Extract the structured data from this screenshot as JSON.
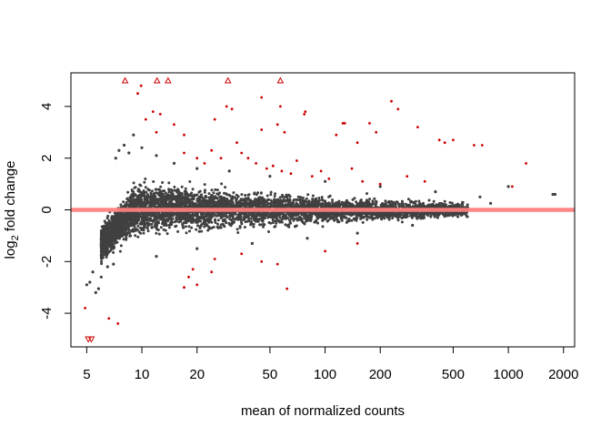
{
  "chart_data": {
    "type": "scatter",
    "title": "",
    "xlabel": "mean of normalized counts",
    "ylabel": "log2 fold change",
    "ylabel_parts": {
      "base": "log",
      "sub": "2",
      "rest": " fold change"
    },
    "x_scale": "log",
    "xlim": [
      4.1,
      2300
    ],
    "ylim": [
      -5.3,
      5.3
    ],
    "x_ticks": [
      5,
      10,
      20,
      50,
      100,
      200,
      500,
      1000,
      2000
    ],
    "x_tick_labels": [
      "5",
      "10",
      "20",
      "50",
      "100",
      "200",
      "500",
      "1000",
      "2000"
    ],
    "y_ticks": [
      -4,
      -2,
      0,
      2,
      4
    ],
    "y_tick_labels": [
      "-4",
      "-2",
      "0",
      "2",
      "4"
    ],
    "grid": false,
    "reference_line": {
      "y": 0,
      "color": "#ff7f7f"
    },
    "colors": {
      "non_significant": "#404040",
      "significant": "#cc0000",
      "reference_line": "#ff7f7f"
    },
    "series": [
      {
        "name": "",
        "color": "#404040",
        "points": [
          [
            5,
            -2.9
          ],
          [
            5.2,
            -2.8
          ],
          [
            5.6,
            -3.2
          ],
          [
            5.8,
            -3.05
          ],
          [
            5.4,
            -2.4
          ],
          [
            6.0,
            -2.6
          ],
          [
            6.5,
            -2.2
          ],
          [
            7.0,
            -2.1
          ],
          [
            7.2,
            2.0
          ],
          [
            7.5,
            2.3
          ],
          [
            8.0,
            2.5
          ],
          [
            8.5,
            2.2
          ],
          [
            9,
            2.9
          ],
          [
            10,
            2.4
          ],
          [
            12,
            2.1
          ],
          [
            15,
            1.8
          ],
          [
            20,
            1.6
          ],
          [
            30,
            1.5
          ],
          [
            50,
            1.3
          ],
          [
            100,
            1.1
          ],
          [
            200,
            0.9
          ],
          [
            400,
            0.7
          ],
          [
            700,
            0.5
          ],
          [
            1000,
            0.9
          ],
          [
            1750,
            0.6
          ],
          [
            1800,
            0.6
          ],
          [
            600,
            0.1
          ],
          [
            800,
            0.25
          ],
          [
            12,
            -1.8
          ],
          [
            20,
            -1.5
          ],
          [
            40,
            -1.3
          ],
          [
            80,
            -1.1
          ],
          [
            150,
            -0.9
          ],
          [
            300,
            -0.6
          ],
          [
            480,
            -0.2
          ]
        ]
      },
      {
        "name": "",
        "color": "#cc0000",
        "points": [
          [
            4.9,
            -3.8
          ],
          [
            6.6,
            -4.2
          ],
          [
            7.4,
            -4.4
          ],
          [
            9.5,
            4.5
          ],
          [
            9.9,
            4.8
          ],
          [
            11.5,
            3.8
          ],
          [
            12.6,
            3.7
          ],
          [
            10.5,
            3.5
          ],
          [
            12,
            3.0
          ],
          [
            15,
            3.3
          ],
          [
            17,
            2.9
          ],
          [
            25,
            3.5
          ],
          [
            29,
            4.0
          ],
          [
            31,
            3.9
          ],
          [
            45,
            4.35
          ],
          [
            45,
            3.1
          ],
          [
            55,
            3.3
          ],
          [
            57,
            4.0
          ],
          [
            60,
            3.0
          ],
          [
            77,
            3.7
          ],
          [
            78,
            3.8
          ],
          [
            115,
            2.9
          ],
          [
            125,
            3.35
          ],
          [
            128,
            3.35
          ],
          [
            150,
            2.6
          ],
          [
            175,
            3.35
          ],
          [
            190,
            3.0
          ],
          [
            230,
            4.2
          ],
          [
            250,
            3.9
          ],
          [
            320,
            3.2
          ],
          [
            420,
            2.7
          ],
          [
            450,
            2.6
          ],
          [
            500,
            2.7
          ],
          [
            650,
            2.5
          ],
          [
            720,
            2.5
          ],
          [
            1250,
            1.8
          ],
          [
            1050,
            0.9
          ],
          [
            17,
            2.2
          ],
          [
            20,
            2.0
          ],
          [
            22,
            1.8
          ],
          [
            24,
            2.3
          ],
          [
            27,
            2.0
          ],
          [
            33,
            2.6
          ],
          [
            35,
            2.2
          ],
          [
            38,
            2.0
          ],
          [
            42,
            1.8
          ],
          [
            48,
            1.6
          ],
          [
            52,
            1.7
          ],
          [
            58,
            1.5
          ],
          [
            65,
            1.4
          ],
          [
            70,
            1.9
          ],
          [
            85,
            1.3
          ],
          [
            95,
            1.5
          ],
          [
            105,
            1.2
          ],
          [
            140,
            1.6
          ],
          [
            160,
            1.1
          ],
          [
            200,
            1.0
          ],
          [
            280,
            1.3
          ],
          [
            350,
            1.1
          ],
          [
            18,
            -2.6
          ],
          [
            19,
            -2.3
          ],
          [
            20,
            -2.9
          ],
          [
            17,
            -3.0
          ],
          [
            24,
            -2.4
          ],
          [
            45,
            -2.0
          ],
          [
            55,
            -2.1
          ],
          [
            62,
            -3.05
          ],
          [
            100,
            -1.6
          ],
          [
            150,
            -1.3
          ],
          [
            25,
            -1.9
          ],
          [
            35,
            -1.7
          ]
        ]
      },
      {
        "name": "",
        "marker": "triangle-up",
        "color": "#cc0000",
        "points": [
          [
            8.1,
            5.0
          ],
          [
            12.1,
            5.0
          ],
          [
            13.9,
            5.0
          ],
          [
            29.5,
            5.0
          ],
          [
            57,
            5.0
          ]
        ]
      },
      {
        "name": "",
        "marker": "triangle-down",
        "color": "#cc0000",
        "points": [
          [
            5.1,
            -5.0
          ],
          [
            5.3,
            -5.0
          ]
        ]
      }
    ],
    "density_band": {
      "series": "background",
      "color": "#404040",
      "upper_envelope": [
        [
          6,
          -0.6
        ],
        [
          7,
          0.0
        ],
        [
          8,
          0.5
        ],
        [
          9,
          1.0
        ],
        [
          10,
          1.1
        ],
        [
          15,
          1.0
        ],
        [
          30,
          0.8
        ],
        [
          60,
          0.65
        ],
        [
          100,
          0.55
        ],
        [
          200,
          0.45
        ],
        [
          400,
          0.35
        ],
        [
          600,
          0.3
        ]
      ],
      "lower_envelope": [
        [
          6,
          -2.0
        ],
        [
          7,
          -1.6
        ],
        [
          8,
          -1.3
        ],
        [
          9,
          -1.1
        ],
        [
          10,
          -0.95
        ],
        [
          15,
          -0.85
        ],
        [
          30,
          -0.75
        ],
        [
          60,
          -0.65
        ],
        [
          100,
          -0.55
        ],
        [
          200,
          -0.45
        ],
        [
          400,
          -0.35
        ],
        [
          600,
          -0.3
        ]
      ]
    }
  }
}
